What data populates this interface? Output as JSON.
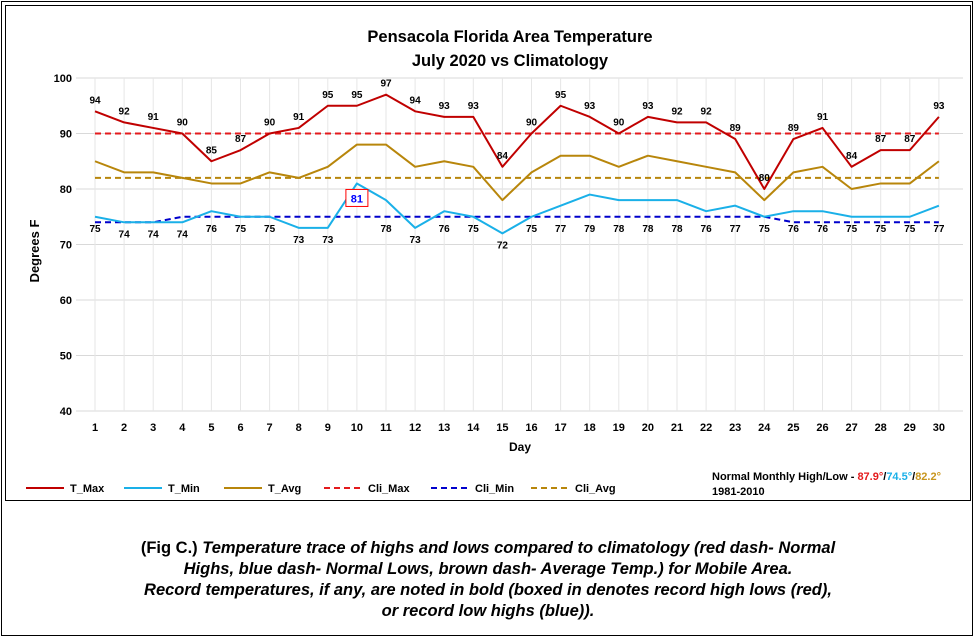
{
  "chart_data": {
    "type": "line",
    "title": "Pensacola Florida Area Temperature",
    "subtitle": "July 2020 vs Climatology",
    "xlabel": "Day",
    "ylabel": "Degrees F",
    "ylim": [
      40,
      100
    ],
    "yticks": [
      40,
      50,
      60,
      70,
      80,
      90,
      100
    ],
    "grid": true,
    "legend_position": "bottom",
    "x": [
      1,
      2,
      3,
      4,
      5,
      6,
      7,
      8,
      9,
      10,
      11,
      12,
      13,
      14,
      15,
      16,
      17,
      18,
      19,
      20,
      21,
      22,
      23,
      24,
      25,
      26,
      27,
      28,
      29,
      30
    ],
    "series": [
      {
        "name": "T_Max",
        "color": "#c00000",
        "style": "solid",
        "values": [
          94,
          92,
          91,
          90,
          85,
          87,
          90,
          91,
          95,
          95,
          97,
          94,
          93,
          93,
          84,
          90,
          95,
          93,
          90,
          93,
          92,
          92,
          89,
          80,
          89,
          91,
          84,
          87,
          87,
          93
        ]
      },
      {
        "name": "T_Min",
        "color": "#1ab0e8",
        "style": "solid",
        "values": [
          75,
          74,
          74,
          74,
          76,
          75,
          75,
          73,
          73,
          81,
          78,
          73,
          76,
          75,
          72,
          75,
          77,
          79,
          78,
          78,
          78,
          76,
          77,
          75,
          76,
          76,
          75,
          75,
          75,
          77
        ]
      },
      {
        "name": "T_Avg",
        "color": "#b8860b",
        "style": "solid",
        "values": [
          85,
          83,
          83,
          82,
          81,
          81,
          83,
          82,
          84,
          88,
          88,
          84,
          85,
          84,
          78,
          83,
          86,
          86,
          84,
          86,
          85,
          84,
          83,
          78,
          83,
          84,
          80,
          81,
          81,
          85
        ]
      },
      {
        "name": "Cli_Max",
        "color": "#e41a1c",
        "style": "dashed",
        "values": [
          90,
          90,
          90,
          90,
          90,
          90,
          90,
          90,
          90,
          90,
          90,
          90,
          90,
          90,
          90,
          90,
          90,
          90,
          90,
          90,
          90,
          90,
          90,
          90,
          90,
          90,
          90,
          90,
          90,
          90
        ]
      },
      {
        "name": "Cli_Min",
        "color": "#0000cc",
        "style": "dashed",
        "values": [
          74,
          74,
          74,
          75,
          75,
          75,
          75,
          75,
          75,
          75,
          75,
          75,
          75,
          75,
          75,
          75,
          75,
          75,
          75,
          75,
          75,
          75,
          75,
          75,
          74,
          74,
          74,
          74,
          74,
          74
        ]
      },
      {
        "name": "Cli_Avg",
        "color": "#b8860b",
        "style": "dashed",
        "values": [
          82,
          82,
          82,
          82,
          82,
          82,
          82,
          82,
          82,
          82,
          82,
          82,
          82,
          82,
          82,
          82,
          82,
          82,
          82,
          82,
          82,
          82,
          82,
          82,
          82,
          82,
          82,
          82,
          82,
          82
        ]
      }
    ],
    "record_boxes": [
      {
        "series": "T_Min",
        "day": 10,
        "value": 81,
        "text_color": "#0000ff",
        "box_color": "#ff0000"
      }
    ],
    "normals": {
      "label_prefix": "Normal Monthly High/Low - ",
      "high": "87.9°",
      "high_color": "#e41a1c",
      "sep1": "/",
      "low": "74.5°",
      "low_color": "#1ab0e8",
      "sep2": "/",
      "avg": "82.2°",
      "avg_color": "#c8961e",
      "period": "1981-2010"
    }
  },
  "caption": {
    "fig_label": "(Fig C.)",
    "line1": " Temperature trace of highs and lows compared to climatology (red dash- Normal",
    "line2": "Highs, blue dash- Normal Lows, brown dash- Average Temp.) for Mobile Area.",
    "line3": "Record temperatures, if any, are noted in bold (boxed in denotes record high lows (red),",
    "line4": "or record low highs (blue))."
  }
}
